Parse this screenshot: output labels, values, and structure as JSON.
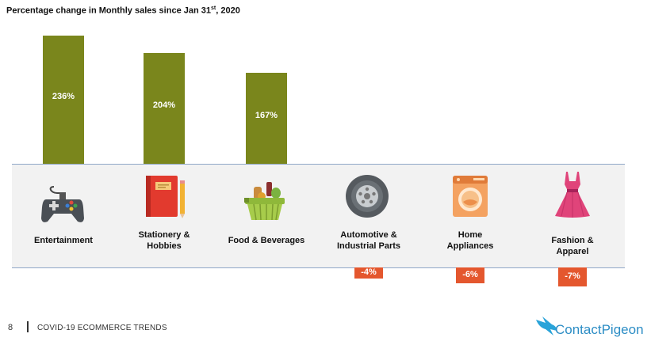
{
  "chart_data": {
    "type": "bar",
    "title_main": "Percentage change in Monthly sales since Jan 31",
    "title_sup": "st",
    "title_tail": ", 2020",
    "categories": [
      {
        "lines": [
          "Entertainment"
        ],
        "icon": "gamepad-icon"
      },
      {
        "lines": [
          "Stationery &",
          "Hobbies"
        ],
        "icon": "notebook-icon"
      },
      {
        "lines": [
          "Food & Beverages"
        ],
        "icon": "grocery-basket-icon"
      },
      {
        "lines": [
          "Automotive &",
          "Industrial Parts"
        ],
        "icon": "tire-icon"
      },
      {
        "lines": [
          "Home",
          "Appliances"
        ],
        "icon": "washing-machine-icon"
      },
      {
        "lines": [
          "Fashion &",
          "Apparel"
        ],
        "icon": "dress-icon"
      }
    ],
    "values": [
      236,
      204,
      167,
      -4,
      -6,
      -7
    ],
    "value_labels": [
      "236%",
      "204%",
      "167%",
      "-4%",
      "-6%",
      "-7%"
    ],
    "colors": {
      "positive": "#7a861c",
      "negative": "#e4572e",
      "band": "#f2f2f2"
    }
  },
  "footer": {
    "page_number": "8",
    "text": "COVID-19 ECOMMERCE TRENDS",
    "brand": "ContactPigeon"
  }
}
